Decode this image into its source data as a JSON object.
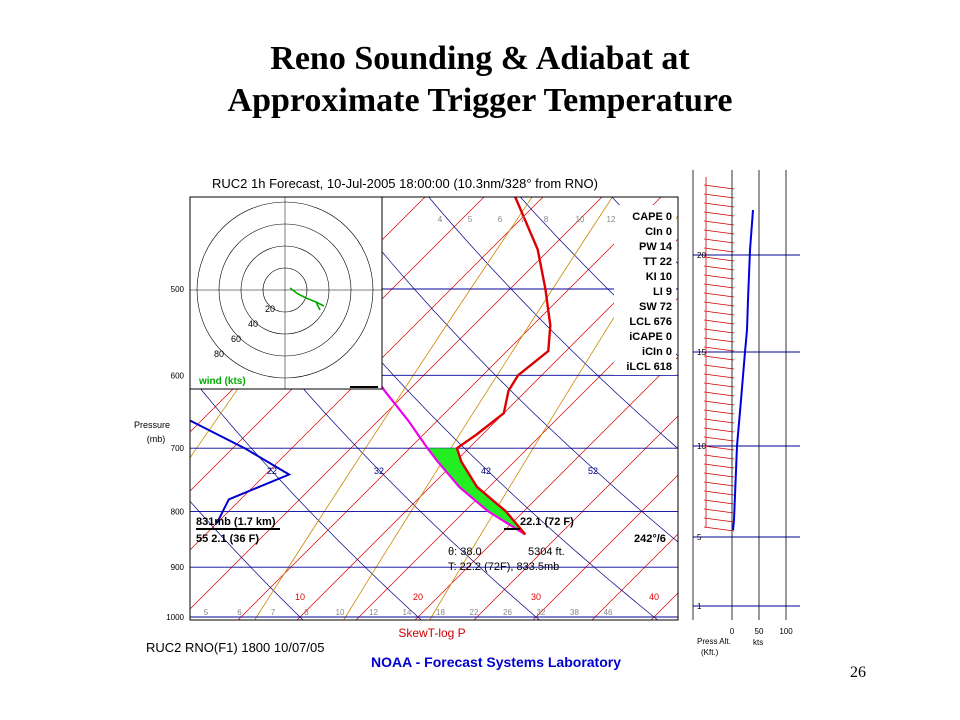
{
  "slide": {
    "title_line1": "Reno Sounding & Adiabat at",
    "title_line2": "Approximate Trigger Temperature",
    "page_number": "26"
  },
  "chart_data": {
    "type": "skewt-logp",
    "title": "RUC2 1h Forecast, 10-Jul-2005 18:00:00 (10.3nm/328° from RNO)",
    "footer_id": "RUC2 RNO(F1) 1800 10/07/05",
    "footer_org": "NOAA - Forecast Systems Laboratory",
    "xlabel": "SkewT-log P",
    "ylabel": "Pressure\n(mb)",
    "pressure_ticks": [
      500,
      600,
      700,
      800,
      900,
      1000
    ],
    "isotherm_labels_bottom": [
      "10",
      "20",
      "30",
      "40"
    ],
    "isotherm_labels_mid": [
      "22",
      "32",
      "42",
      "52"
    ],
    "mixing_ratio_labels_top": [
      "4",
      "5",
      "6",
      "7",
      "8",
      "10",
      "12"
    ],
    "mixing_ratio_labels_bottom": [
      "5",
      "6",
      "7",
      "8",
      "10",
      "12",
      "14",
      "18",
      "22",
      "26",
      "32",
      "38",
      "46"
    ],
    "temperature_profile": [
      [
        1000,
        null
      ],
      [
        840,
        22.1
      ],
      [
        800,
        18.5
      ],
      [
        760,
        14.0
      ],
      [
        720,
        10.5
      ],
      [
        700,
        9.0
      ],
      [
        680,
        9.5
      ],
      [
        650,
        10.0
      ],
      [
        620,
        8.5
      ],
      [
        600,
        8.0
      ],
      [
        570,
        8.5
      ],
      [
        540,
        6.5
      ],
      [
        500,
        3.0
      ],
      [
        460,
        -1.0
      ],
      [
        400,
        -9.0
      ]
    ],
    "dewpoint_profile": [
      [
        820,
        -5.0
      ],
      [
        780,
        -6.0
      ],
      [
        740,
        -3.0
      ],
      [
        700,
        -9.0
      ],
      [
        660,
        -16.0
      ],
      [
        640,
        -22.0
      ],
      [
        600,
        -23.0
      ],
      [
        560,
        -22.0
      ],
      [
        520,
        -27.0
      ],
      [
        480,
        -32.0
      ],
      [
        450,
        -35.0
      ]
    ],
    "parcel_adiabat": [
      [
        840,
        22.1
      ],
      [
        800,
        17.0
      ],
      [
        760,
        12.5
      ],
      [
        720,
        8.5
      ],
      [
        700,
        6.5
      ],
      [
        660,
        2.5
      ],
      [
        620,
        -2.0
      ],
      [
        580,
        -6.5
      ],
      [
        540,
        -11.0
      ],
      [
        500,
        -16.5
      ],
      [
        460,
        -22.0
      ],
      [
        420,
        -28.0
      ]
    ],
    "indices": [
      {
        "label": "CAPE 0"
      },
      {
        "label": "CIn 0"
      },
      {
        "label": "PW 14"
      },
      {
        "label": "TT 22"
      },
      {
        "label": "KI 10"
      },
      {
        "label": "LI 9"
      },
      {
        "label": "SW 72"
      },
      {
        "label": "LCL 676"
      },
      {
        "label": "iCAPE 0"
      },
      {
        "label": "iCIn 0"
      },
      {
        "label": "iLCL 618"
      }
    ],
    "annotations": {
      "level": "831mb (1.7 km)",
      "dewpoint": "55 2.1 (36 F)",
      "temp": "22.1 (72 F)",
      "wind": "242°/6",
      "theta": "θ: 38.0",
      "height": "5304 ft.",
      "trigger": "T: 22.2 (72F), 833.5mb"
    },
    "hodograph": {
      "rings": [
        "20",
        "40",
        "60",
        "80"
      ],
      "label": "wind (kts)",
      "colors": {
        "ring": "#000000",
        "trace": "#00aa00"
      }
    },
    "wind_profile": {
      "altitude_ticks": [
        "20",
        "15",
        "10",
        "5",
        "1"
      ],
      "speed_ticks": [
        "0",
        "50",
        "100"
      ],
      "xlabel_1": "Press Alt.",
      "xlabel_2": "(Kft.)",
      "speed_unit": "kts"
    },
    "colors": {
      "temperature": "#dd0000",
      "dewpoint": "#0000cc",
      "parcel": "#ee00ee",
      "cape_fill": "#22ee22",
      "isotherm": "#dd0000",
      "dry_adiabat": "#000088",
      "mixing_ratio": "#cc8800",
      "isobar": "#000099",
      "barbs": "#cc0000",
      "speed_trace": "#0000dd"
    }
  }
}
